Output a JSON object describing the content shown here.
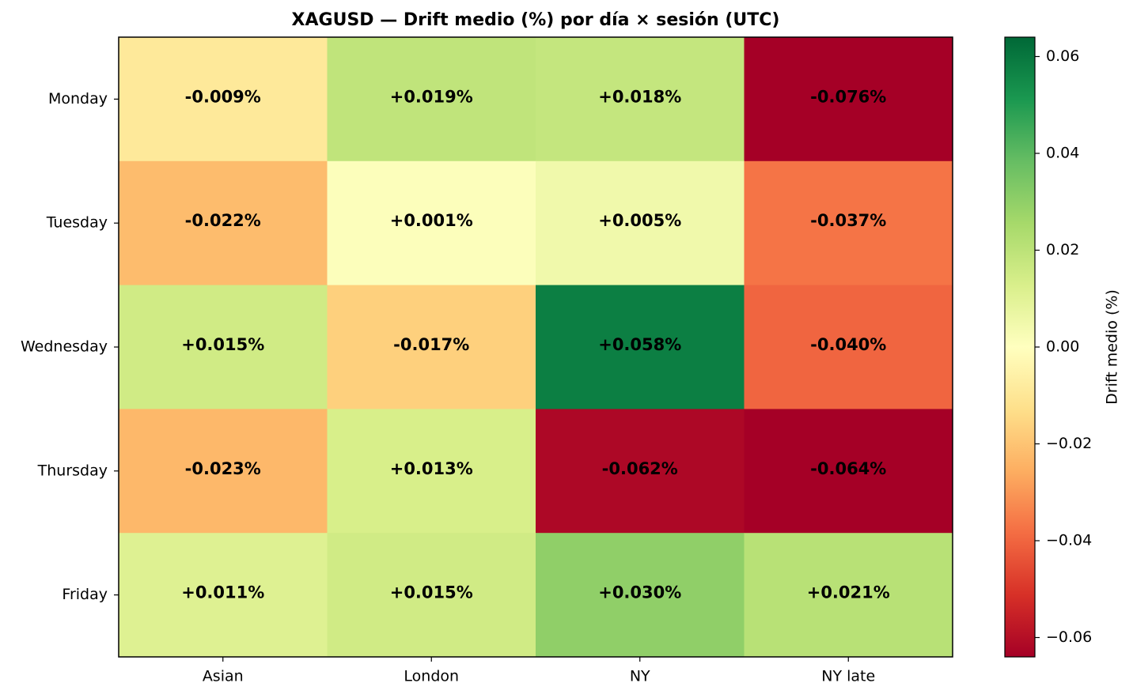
{
  "chart_data": {
    "type": "heatmap",
    "title": "XAGUSD — Drift medio (%) por día × sesión (UTC)",
    "x_categories": [
      "Asian",
      "London",
      "NY",
      "NY late"
    ],
    "y_categories": [
      "Monday",
      "Tuesday",
      "Wednesday",
      "Thursday",
      "Friday"
    ],
    "values": [
      [
        -0.009,
        0.019,
        0.018,
        -0.076
      ],
      [
        -0.022,
        0.001,
        0.005,
        -0.037
      ],
      [
        0.015,
        -0.017,
        0.058,
        -0.04
      ],
      [
        -0.023,
        0.013,
        -0.062,
        -0.064
      ],
      [
        0.011,
        0.015,
        0.03,
        0.021
      ]
    ],
    "value_labels": [
      [
        "-0.009%",
        "+0.019%",
        "+0.018%",
        "-0.076%"
      ],
      [
        "-0.022%",
        "+0.001%",
        "+0.005%",
        "-0.037%"
      ],
      [
        "+0.015%",
        "-0.017%",
        "+0.058%",
        "-0.040%"
      ],
      [
        "-0.023%",
        "+0.013%",
        "-0.062%",
        "-0.064%"
      ],
      [
        "+0.011%",
        "+0.015%",
        "+0.030%",
        "+0.021%"
      ]
    ],
    "colormap": "RdYlGn",
    "colorbar_label": "Drift medio (%)",
    "clim": [
      -0.064,
      0.064
    ],
    "cticks": [
      {
        "value": -0.06,
        "label": "−0.06"
      },
      {
        "value": -0.04,
        "label": "−0.04"
      },
      {
        "value": -0.02,
        "label": "−0.02"
      },
      {
        "value": 0,
        "label": "0.00"
      },
      0.02,
      0.04,
      0.06
    ]
  }
}
